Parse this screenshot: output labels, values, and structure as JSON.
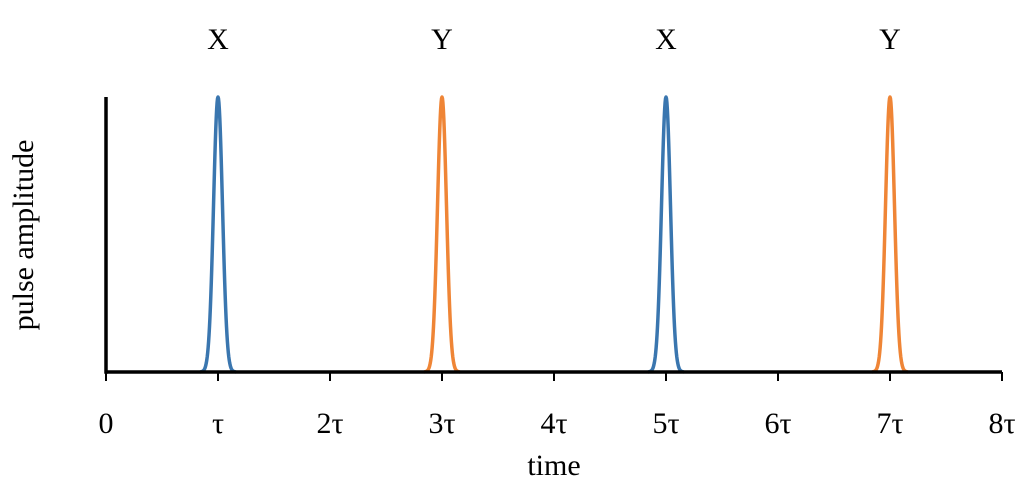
{
  "chart_data": {
    "type": "pulse",
    "xlabel": "time",
    "ylabel": "pulse amplitude",
    "xlim": [
      0,
      8
    ],
    "ylim": [
      0,
      1
    ],
    "xticks": [
      0,
      {
        "value": 1,
        "label": "τ"
      },
      {
        "value": 2,
        "label": "2τ"
      },
      {
        "value": 3,
        "label": "3τ"
      },
      {
        "value": 4,
        "label": "4τ"
      },
      {
        "value": 5,
        "label": "5τ"
      },
      {
        "value": 6,
        "label": "6τ"
      },
      {
        "value": 7,
        "label": "7τ"
      },
      {
        "value": 8,
        "label": "8τ"
      }
    ],
    "sigma": 0.04,
    "pulses": [
      {
        "label": "X",
        "x": 1,
        "amplitude": 1,
        "color": "#3a76af"
      },
      {
        "label": "Y",
        "x": 3,
        "amplitude": 1,
        "color": "#ef8536"
      },
      {
        "label": "X",
        "x": 5,
        "amplitude": 1,
        "color": "#3a76af"
      },
      {
        "label": "Y",
        "x": 7,
        "amplitude": 1,
        "color": "#ef8536"
      }
    ]
  }
}
